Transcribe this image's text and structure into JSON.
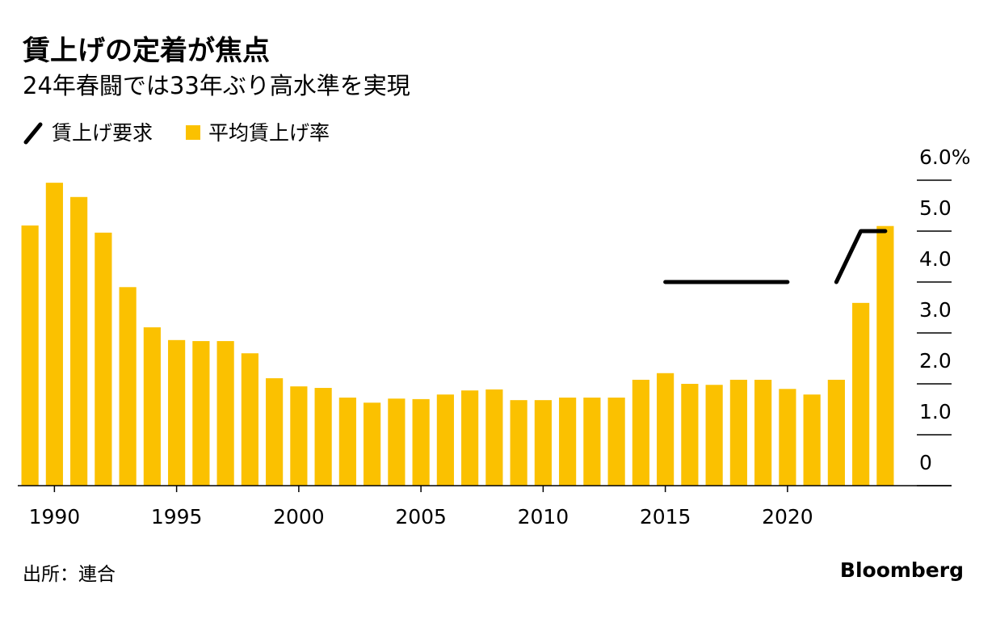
{
  "chart_data": {
    "type": "bar",
    "title": "賃上げの定着が焦点",
    "subtitle": "24年春闘では33年ぶり高水準を実現",
    "source": "出所：連合",
    "brand": "Bloomberg",
    "x": [
      1989,
      1990,
      1991,
      1992,
      1993,
      1994,
      1995,
      1996,
      1997,
      1998,
      1999,
      2000,
      2001,
      2002,
      2003,
      2004,
      2005,
      2006,
      2007,
      2008,
      2009,
      2010,
      2011,
      2012,
      2013,
      2014,
      2015,
      2016,
      2017,
      2018,
      2019,
      2020,
      2021,
      2022,
      2023,
      2024
    ],
    "series": [
      {
        "name": "賃上げ要求",
        "type": "line",
        "color": "#000000",
        "values": [
          null,
          null,
          null,
          null,
          null,
          null,
          null,
          null,
          null,
          null,
          null,
          null,
          null,
          null,
          null,
          null,
          null,
          null,
          null,
          null,
          null,
          null,
          null,
          null,
          null,
          null,
          4,
          4,
          4,
          4,
          4,
          4,
          null,
          4,
          5,
          5
        ]
      },
      {
        "name": "平均賃上げ率",
        "type": "bar",
        "color": "#fbc100",
        "values": [
          5.11,
          5.95,
          5.67,
          4.97,
          3.9,
          3.11,
          2.86,
          2.84,
          2.84,
          2.6,
          2.11,
          1.95,
          1.92,
          1.73,
          1.63,
          1.71,
          1.7,
          1.79,
          1.87,
          1.89,
          1.68,
          1.68,
          1.73,
          1.73,
          1.73,
          2.08,
          2.21,
          2.0,
          1.98,
          2.08,
          2.08,
          1.9,
          1.79,
          2.08,
          3.59,
          5.1
        ]
      }
    ],
    "xlim": [
      1988.5,
      2024.5
    ],
    "xticks": [
      1990,
      1995,
      2000,
      2005,
      2010,
      2015,
      2020
    ],
    "ylim": [
      0,
      6
    ],
    "yticks": [
      0,
      {
        "value": 1,
        "label": "1.0"
      },
      {
        "value": 2,
        "label": "2.0"
      },
      {
        "value": 3,
        "label": "3.0"
      },
      {
        "value": 4,
        "label": "4.0"
      },
      {
        "value": 5,
        "label": "5.0"
      },
      {
        "value": 6,
        "label": "6.0%"
      }
    ],
    "grid": true
  }
}
